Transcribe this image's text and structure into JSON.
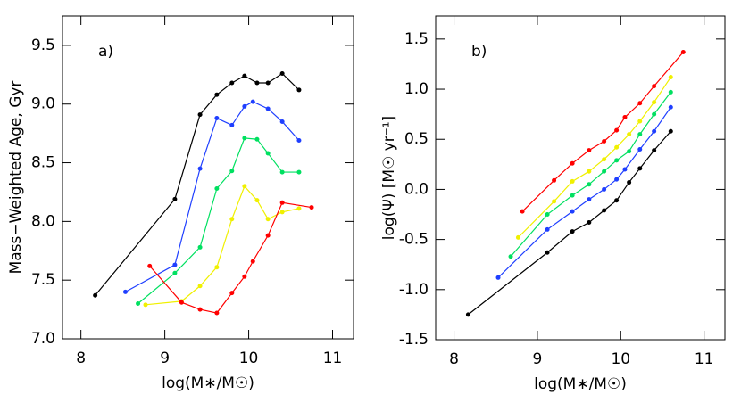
{
  "chart_data": [
    {
      "type": "line",
      "annotation": "a)",
      "x_label": "log(M∗/M☉)",
      "y_label": "Mass−Weighted Age, Gyr",
      "xlim": [
        7.78,
        11.25
      ],
      "ylim": [
        7.0,
        9.75
      ],
      "xticks": [
        8,
        9,
        10,
        11
      ],
      "yticks": [
        {
          "value": 7,
          "label": "7.0"
        },
        7.5,
        {
          "value": 8,
          "label": "8.0"
        },
        8.5,
        {
          "value": 9,
          "label": "9.0"
        },
        9.5
      ],
      "series": [
        {
          "color": "#000000",
          "x": [
            8.17,
            9.12,
            9.42,
            9.62,
            9.8,
            9.95,
            10.1,
            10.23,
            10.4,
            10.6
          ],
          "values": [
            7.37,
            8.19,
            8.91,
            9.08,
            9.18,
            9.24,
            9.18,
            9.18,
            9.26,
            9.12
          ]
        },
        {
          "color": "#1f3fff",
          "x": [
            8.53,
            9.12,
            9.42,
            9.62,
            9.8,
            9.95,
            10.05,
            10.23,
            10.4,
            10.6
          ],
          "values": [
            7.4,
            7.63,
            8.45,
            8.88,
            8.82,
            8.98,
            9.02,
            8.96,
            8.85,
            8.69
          ]
        },
        {
          "color": "#00e060",
          "x": [
            8.68,
            9.12,
            9.42,
            9.62,
            9.8,
            9.95,
            10.1,
            10.23,
            10.4,
            10.6
          ],
          "values": [
            7.3,
            7.56,
            7.78,
            8.28,
            8.43,
            8.71,
            8.7,
            8.58,
            8.42,
            8.42
          ]
        },
        {
          "color": "#f0f000",
          "x": [
            8.77,
            9.2,
            9.42,
            9.62,
            9.8,
            9.95,
            10.1,
            10.23,
            10.4,
            10.6
          ],
          "values": [
            7.29,
            7.32,
            7.45,
            7.61,
            8.02,
            8.3,
            8.18,
            8.02,
            8.08,
            8.11
          ]
        },
        {
          "color": "#ff0000",
          "x": [
            8.82,
            9.2,
            9.42,
            9.62,
            9.8,
            9.95,
            10.05,
            10.23,
            10.4,
            10.75
          ],
          "values": [
            7.62,
            7.31,
            7.25,
            7.22,
            7.39,
            7.53,
            7.66,
            7.88,
            8.16,
            8.12
          ]
        }
      ]
    },
    {
      "type": "line",
      "annotation": "b)",
      "x_label": "log(M∗/M☉)",
      "y_label": "log(Ψ)  [M☉ yr⁻¹]",
      "xlim": [
        7.78,
        11.25
      ],
      "ylim": [
        -1.5,
        1.73
      ],
      "xticks": [
        8,
        9,
        10,
        11
      ],
      "yticks": [
        -1.5,
        {
          "value": -1,
          "label": "-1.0"
        },
        -0.5,
        {
          "value": 0,
          "label": "0.0"
        },
        0.5,
        {
          "value": 1,
          "label": "1.0"
        },
        1.5
      ],
      "series": [
        {
          "color": "#000000",
          "x": [
            8.17,
            9.12,
            9.42,
            9.62,
            9.8,
            9.95,
            10.1,
            10.23,
            10.4,
            10.6
          ],
          "values": [
            -1.25,
            -0.63,
            -0.42,
            -0.33,
            -0.21,
            -0.11,
            0.07,
            0.21,
            0.39,
            0.58
          ]
        },
        {
          "color": "#1f3fff",
          "x": [
            8.53,
            9.12,
            9.42,
            9.62,
            9.8,
            9.95,
            10.05,
            10.23,
            10.4,
            10.6
          ],
          "values": [
            -0.88,
            -0.4,
            -0.22,
            -0.1,
            0.0,
            0.1,
            0.2,
            0.4,
            0.58,
            0.82
          ]
        },
        {
          "color": "#00e060",
          "x": [
            8.68,
            9.12,
            9.42,
            9.62,
            9.8,
            9.95,
            10.1,
            10.23,
            10.4,
            10.6
          ],
          "values": [
            -0.67,
            -0.25,
            -0.06,
            0.05,
            0.18,
            0.29,
            0.38,
            0.55,
            0.75,
            0.97
          ]
        },
        {
          "color": "#f0f000",
          "x": [
            8.77,
            9.2,
            9.42,
            9.62,
            9.8,
            9.95,
            10.1,
            10.23,
            10.4,
            10.6
          ],
          "values": [
            -0.48,
            -0.12,
            0.08,
            0.18,
            0.3,
            0.42,
            0.55,
            0.68,
            0.87,
            1.12
          ]
        },
        {
          "color": "#ff0000",
          "x": [
            8.82,
            9.2,
            9.42,
            9.62,
            9.8,
            9.95,
            10.05,
            10.23,
            10.4,
            10.75
          ],
          "values": [
            -0.22,
            0.09,
            0.26,
            0.39,
            0.48,
            0.59,
            0.72,
            0.86,
            1.03,
            1.37
          ]
        }
      ]
    }
  ]
}
